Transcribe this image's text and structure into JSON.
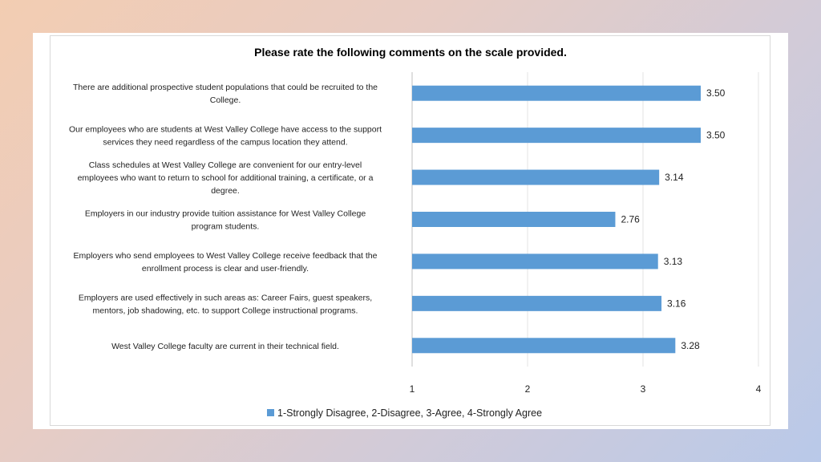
{
  "chart_data": {
    "type": "bar",
    "orientation": "horizontal",
    "title": "Please rate the following comments on the scale provided.",
    "categories": [
      [
        "There are additional prospective student populations that could be recruited to the",
        "College."
      ],
      [
        "Our employees who are students at West Valley College have access to the support",
        "services they need regardless of the campus location they attend."
      ],
      [
        "Class schedules at West Valley College are convenient for our entry-level",
        "employees who want to return to school for additional training, a certificate, or a",
        "degree."
      ],
      [
        "Employers in our industry provide tuition assistance for West Valley College",
        "program students."
      ],
      [
        "Employers who send employees to West Valley College receive feedback that the",
        "enrollment process is clear and user-friendly."
      ],
      [
        "Employers are used effectively in such areas as: Career Fairs, guest speakers,",
        "mentors, job shadowing, etc. to support College instructional programs."
      ],
      [
        "West Valley College faculty are current in their technical field."
      ]
    ],
    "series": [
      {
        "name": "1-Strongly Disagree, 2-Disagree, 3-Agree, 4-Strongly Agree",
        "values": [
          3.5,
          3.5,
          3.14,
          2.76,
          3.13,
          3.16,
          3.28
        ],
        "labels": [
          "3.50",
          "3.50",
          "3.14",
          "2.76",
          "3.13",
          "3.16",
          "3.28"
        ],
        "color": "#5b9bd5"
      }
    ],
    "xlim": [
      1,
      4
    ],
    "xticks": [
      "1",
      "2",
      "3",
      "4"
    ],
    "grid": true,
    "legend_position": "bottom"
  }
}
